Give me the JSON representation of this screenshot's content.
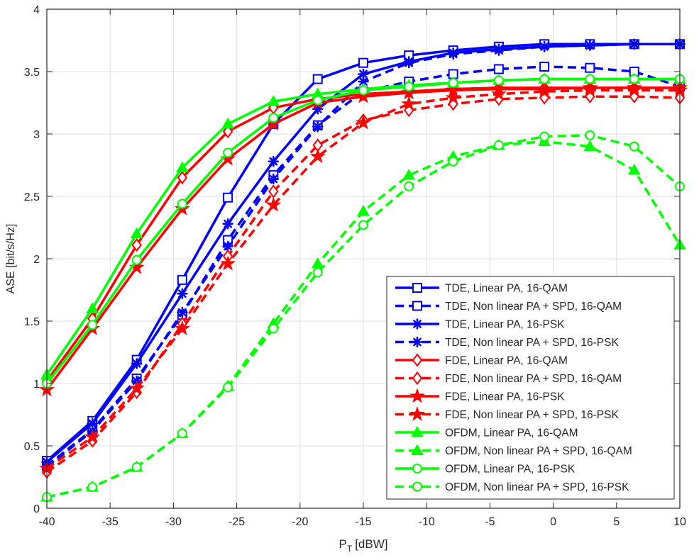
{
  "chart_data": {
    "type": "line",
    "title": "",
    "xlabel": "P",
    "xlabel_sub": "T",
    "xlabel_unit": "[dBW]",
    "ylabel": "ASE [bit/s/Hz]",
    "xlim": [
      -40,
      10
    ],
    "ylim": [
      0,
      4
    ],
    "xticks": [
      -40,
      -35,
      -30,
      -25,
      -20,
      -15,
      -10,
      -5,
      0,
      5,
      10
    ],
    "yticks": [
      0,
      0.5,
      1,
      1.5,
      2,
      2.5,
      3,
      3.5,
      4
    ],
    "xtick_labels": [
      "-40",
      "-35",
      "-30",
      "-25",
      "-20",
      "-15",
      "-10",
      "-5",
      "0",
      "5",
      "10"
    ],
    "ytick_labels": [
      "0",
      "0.5",
      "1",
      "1.5",
      "2",
      "2.5",
      "3",
      "3.5",
      "4"
    ],
    "grid": true,
    "legend_position": "bottom-right",
    "x": [
      -40,
      -36.4,
      -32.9,
      -29.3,
      -25.7,
      -22.1,
      -18.6,
      -15,
      -11.4,
      -7.9,
      -4.3,
      -0.7,
      2.9,
      6.4,
      10
    ],
    "colors": {
      "blue": "#0000ff",
      "red": "#ff0000",
      "green": "#00ff00",
      "axis": "#262626",
      "grid": "#dfdfdf"
    },
    "series": [
      {
        "name": "TDE, Linear PA, 16-QAM",
        "color": "blue",
        "dash": "solid",
        "marker": "square",
        "values": [
          0.38,
          0.7,
          1.19,
          1.83,
          2.49,
          3.08,
          3.44,
          3.57,
          3.63,
          3.67,
          3.7,
          3.72,
          3.72,
          3.72,
          3.72
        ]
      },
      {
        "name": "TDE, Non linear PA + SPD, 16-QAM",
        "color": "blue",
        "dash": "dashed",
        "marker": "square",
        "values": [
          0.34,
          0.63,
          1.04,
          1.55,
          2.15,
          2.67,
          3.07,
          3.34,
          3.42,
          3.48,
          3.52,
          3.54,
          3.53,
          3.5,
          3.38
        ]
      },
      {
        "name": "TDE, Linear PA, 16-PSK",
        "color": "blue",
        "dash": "solid",
        "marker": "asterisk",
        "values": [
          0.37,
          0.68,
          1.16,
          1.72,
          2.28,
          2.78,
          3.2,
          3.48,
          3.58,
          3.65,
          3.68,
          3.7,
          3.71,
          3.72,
          3.72
        ]
      },
      {
        "name": "TDE, Non linear PA + SPD, 16-PSK",
        "color": "blue",
        "dash": "dashed",
        "marker": "asterisk",
        "values": [
          0.33,
          0.62,
          1.02,
          1.57,
          2.1,
          2.64,
          3.06,
          3.42,
          3.57,
          3.64,
          3.67,
          3.7,
          3.71,
          3.72,
          3.72
        ]
      },
      {
        "name": "FDE, Linear PA, 16-QAM",
        "color": "red",
        "dash": "solid",
        "marker": "diamond",
        "values": [
          1.02,
          1.52,
          2.11,
          2.65,
          3.02,
          3.21,
          3.28,
          3.32,
          3.34,
          3.36,
          3.37,
          3.37,
          3.37,
          3.37,
          3.37
        ]
      },
      {
        "name": "FDE, Non linear PA + SPD, 16-QAM",
        "color": "red",
        "dash": "dashed",
        "marker": "diamond",
        "values": [
          0.29,
          0.54,
          0.93,
          1.48,
          2.02,
          2.54,
          2.91,
          3.11,
          3.19,
          3.24,
          3.28,
          3.29,
          3.3,
          3.3,
          3.29
        ]
      },
      {
        "name": "FDE, Linear PA, 16-PSK",
        "color": "red",
        "dash": "solid",
        "marker": "star",
        "values": [
          0.95,
          1.44,
          1.93,
          2.4,
          2.8,
          3.08,
          3.25,
          3.3,
          3.33,
          3.35,
          3.36,
          3.36,
          3.37,
          3.37,
          3.37
        ]
      },
      {
        "name": "FDE, Non linear PA + SPD, 16-PSK",
        "color": "red",
        "dash": "dashed",
        "marker": "star",
        "values": [
          0.32,
          0.57,
          0.96,
          1.44,
          1.96,
          2.43,
          2.82,
          3.09,
          3.24,
          3.29,
          3.32,
          3.34,
          3.35,
          3.35,
          3.35
        ]
      },
      {
        "name": "OFDM, Linear PA, 16-QAM",
        "color": "green",
        "dash": "solid",
        "marker": "triangle",
        "values": [
          1.07,
          1.6,
          2.2,
          2.73,
          3.08,
          3.26,
          3.32,
          3.36,
          3.39,
          3.41,
          3.43,
          3.44,
          3.44,
          3.44,
          3.44
        ]
      },
      {
        "name": "OFDM, Non linear PA + SPD, 16-QAM",
        "color": "green",
        "dash": "dashed",
        "marker": "triangle",
        "values": [
          0.09,
          0.17,
          0.33,
          0.6,
          0.98,
          1.48,
          1.96,
          2.38,
          2.67,
          2.82,
          2.91,
          2.94,
          2.9,
          2.71,
          2.11
        ]
      },
      {
        "name": "OFDM, Linear PA, 16-PSK",
        "color": "green",
        "dash": "solid",
        "marker": "circle",
        "values": [
          1.0,
          1.47,
          1.99,
          2.44,
          2.85,
          3.13,
          3.27,
          3.35,
          3.38,
          3.41,
          3.43,
          3.44,
          3.44,
          3.44,
          3.44
        ]
      },
      {
        "name": "OFDM, Non linear PA + SPD, 16-PSK",
        "color": "green",
        "dash": "dashed",
        "marker": "circle",
        "values": [
          0.09,
          0.17,
          0.33,
          0.6,
          0.97,
          1.44,
          1.89,
          2.27,
          2.58,
          2.78,
          2.91,
          2.98,
          2.99,
          2.9,
          2.58
        ]
      }
    ]
  }
}
